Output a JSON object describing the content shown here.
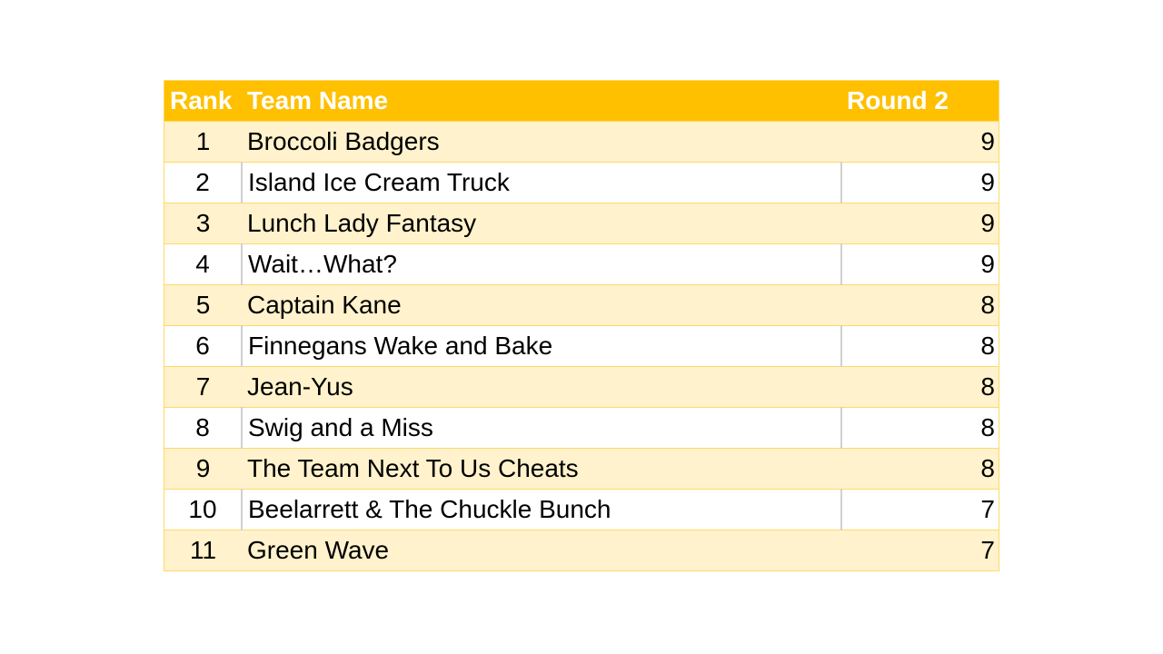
{
  "colors": {
    "header_bg": "#FFC000",
    "band_bg": "#FFF2CC",
    "border": "#FFD966"
  },
  "table": {
    "headers": [
      "Rank",
      "Team Name",
      "Round 2"
    ],
    "rows": [
      [
        "1",
        "Broccoli Badgers",
        "9"
      ],
      [
        "2",
        "Island Ice Cream Truck",
        "9"
      ],
      [
        "3",
        "Lunch Lady Fantasy",
        "9"
      ],
      [
        "4",
        "Wait…What?",
        "9"
      ],
      [
        "5",
        "Captain Kane",
        "8"
      ],
      [
        "6",
        "Finnegans Wake and Bake",
        "8"
      ],
      [
        "7",
        "Jean-Yus",
        "8"
      ],
      [
        "8",
        "Swig and a Miss",
        "8"
      ],
      [
        "9",
        "The Team Next To Us Cheats",
        "8"
      ],
      [
        "10",
        "Beelarrett & The Chuckle Bunch",
        "7"
      ],
      [
        "11",
        "Green Wave",
        "7"
      ]
    ]
  }
}
